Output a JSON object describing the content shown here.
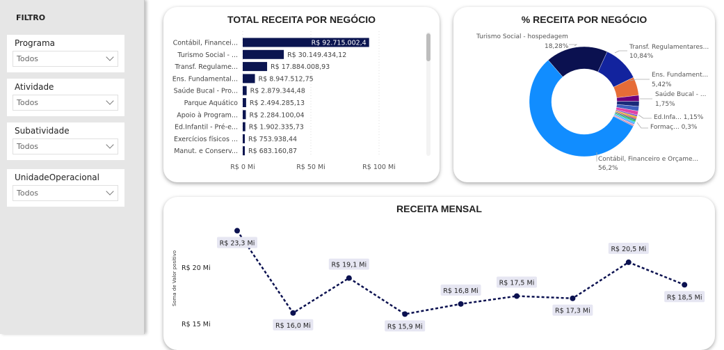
{
  "sidebar": {
    "title": "FILTRO",
    "slicers": [
      {
        "label": "Programa",
        "value": "Todos"
      },
      {
        "label": "Atividade",
        "value": "Todos"
      },
      {
        "label": "Subatividade",
        "value": "Todos"
      },
      {
        "label": "UnidadeOperacional",
        "value": "Todos"
      }
    ]
  },
  "chart_data": [
    {
      "type": "bar",
      "title": "TOTAL RECEITA POR NEGÓCIO",
      "categories": [
        "Contábil, Financei...",
        "Turismo Social - ...",
        "Transf. Regulame...",
        "Ens. Fundamental...",
        "Saúde Bucal - Pro...",
        "Parque Aquático",
        "Apoio à Program...",
        "Ed.Infantil - Pré-e...",
        "Exercícios físicos ...",
        "Manut. e Conserv..."
      ],
      "values": [
        92715002.4,
        30149434.12,
        17884008.93,
        8947512.75,
        2879344.48,
        2494285.13,
        2284100.04,
        1902335.73,
        753938.44,
        683160.87
      ],
      "value_labels": [
        "R$ 92.715.002,4",
        "R$ 30.149.434,12",
        "R$ 17.884.008,93",
        "R$ 8.947.512,75",
        "R$ 2.879.344,48",
        "R$ 2.494.285,13",
        "R$ 2.284.100,04",
        "R$ 1.902.335,73",
        "R$ 753.938,44",
        "R$ 683.160,87"
      ],
      "x_ticks": [
        "R$ 0 Mi",
        "R$ 50 Mi",
        "R$ 100 Mi"
      ],
      "xlim": [
        0,
        100000000
      ],
      "color": "#0b1550"
    },
    {
      "type": "pie",
      "title": "% RECEITA POR NEGÓCIO",
      "slices": [
        {
          "label": "Turismo Social - hospedagem",
          "pct_label": "18,28%",
          "value": 18.28,
          "color": "#0b1150"
        },
        {
          "label": "Transf. Regulamentares...",
          "pct_label": "10,84%",
          "value": 10.84,
          "color": "#12239e"
        },
        {
          "label": "Ens. Fundament...",
          "pct_label": "5,42%",
          "value": 5.42,
          "color": "#e66c37"
        },
        {
          "label": "Saúde Bucal - ...",
          "pct_label": "1,75%",
          "value": 1.75,
          "color": "#6b007b"
        },
        {
          "label": "",
          "pct_label": "",
          "value": 1.51,
          "color": "#1a2a7a"
        },
        {
          "label": "",
          "pct_label": "",
          "value": 1.38,
          "color": "#3f5fbf"
        },
        {
          "label": "Ed.Infa... 1,15%",
          "pct_label": "",
          "value": 1.15,
          "color": "#e044a7"
        },
        {
          "label": "",
          "pct_label": "",
          "value": 0.46,
          "color": "#744ec2"
        },
        {
          "label": "",
          "pct_label": "",
          "value": 0.41,
          "color": "#d9b300"
        },
        {
          "label": "",
          "pct_label": "",
          "value": 0.4,
          "color": "#d64550"
        },
        {
          "label": "",
          "pct_label": "",
          "value": 0.4,
          "color": "#197278"
        },
        {
          "label": "",
          "pct_label": "",
          "value": 0.4,
          "color": "#1aab40"
        },
        {
          "label": "",
          "pct_label": "",
          "value": 0.4,
          "color": "#15c6f4"
        },
        {
          "label": "",
          "pct_label": "",
          "value": 0.4,
          "color": "#4092ff"
        },
        {
          "label": "Formaç... 0,3%",
          "pct_label": "",
          "value": 0.3,
          "color": "#f08fb0"
        },
        {
          "label": "",
          "pct_label": "",
          "value": 0.3,
          "color": "#a66999"
        },
        {
          "label": "Contábil, Financeiro e Orçame...",
          "pct_label": "56,2%",
          "value": 56.2,
          "color": "#118dff"
        }
      ]
    },
    {
      "type": "line",
      "title": "RECEITA MENSAL",
      "ylabel": "Soma de Valor positivo",
      "y_ticks": [
        {
          "v": 20,
          "label": "R$ 20 Mi"
        },
        {
          "v": 15,
          "label": "R$ 15 Mi"
        }
      ],
      "values": [
        23.3,
        16.0,
        19.1,
        15.9,
        16.8,
        17.5,
        17.3,
        20.5,
        18.5
      ],
      "value_labels": [
        "R$ 23,3 Mi",
        "R$ 16,0 Mi",
        "R$ 19,1 Mi",
        "R$ 15,9 Mi",
        "R$ 16,8 Mi",
        "R$ 17,5 Mi",
        "R$ 17,3 Mi",
        "R$ 20,5 Mi",
        "R$ 18,5 Mi"
      ],
      "label_pos": [
        "below",
        "below",
        "above",
        "below",
        "above",
        "above",
        "below",
        "above",
        "below"
      ],
      "color": "#0b1150"
    }
  ]
}
